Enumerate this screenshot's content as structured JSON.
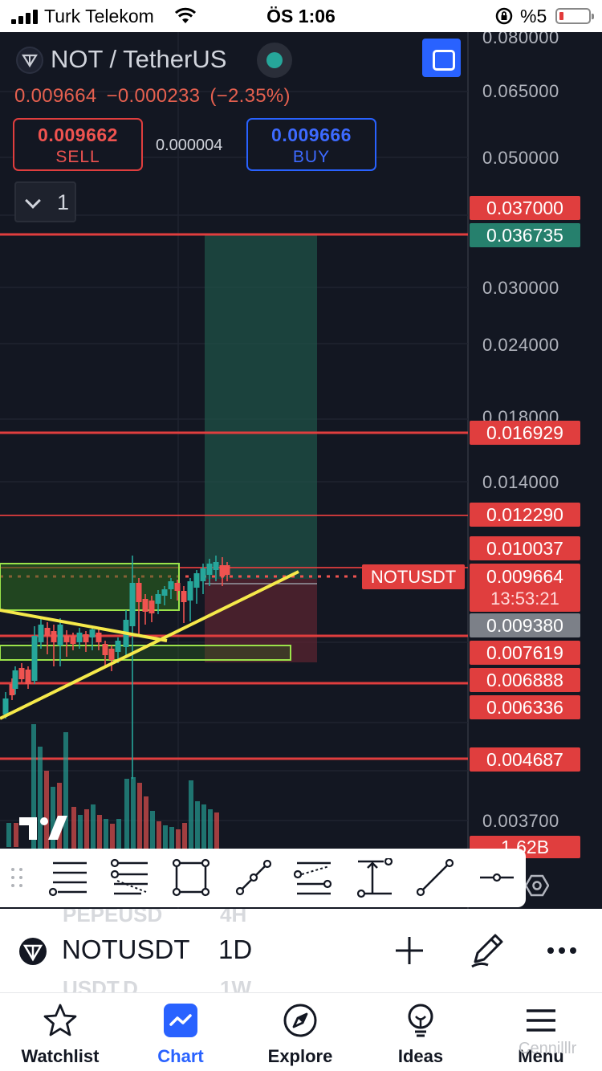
{
  "status_bar": {
    "carrier": "Turk Telekom",
    "time": "ÖS 1:06",
    "battery_percent": "%5"
  },
  "header": {
    "title": "NOT / TetherUS",
    "price": "0.009664",
    "change": "−0.000233",
    "change_pct": "(−2.35%)",
    "sell_price": "0.009662",
    "sell_label": "SELL",
    "spread": "0.000004",
    "buy_price": "0.009666",
    "buy_label": "BUY",
    "interval_count": "1"
  },
  "price_scale": {
    "labels": [
      "0.080000",
      "0.065000",
      "0.050000",
      "0.030000",
      "0.024000",
      "0.018000",
      "0.014000",
      "0.003700"
    ],
    "tags": {
      "level_1": "0.037000",
      "target": "0.036735",
      "level_2": "0.016929",
      "level_3": "0.012290",
      "level_4": "0.010037",
      "current": "0.009664",
      "countdown": "13:53:21",
      "stop": "0.009380",
      "level_5": "0.007619",
      "level_6": "0.006888",
      "level_7": "0.006336",
      "level_8": "0.004687",
      "volume": "1.62B"
    },
    "symbol_label": "NOTUSDT"
  },
  "symbol_bar": {
    "ghost_above_symbol": "PEPEUSD",
    "ghost_above_interval": "4H",
    "symbol": "NOTUSDT",
    "interval": "1D",
    "ghost_below_symbol": "USDT.D",
    "ghost_below_interval": "1W"
  },
  "tabs": [
    {
      "label": "Watchlist",
      "icon": "star-icon"
    },
    {
      "label": "Chart",
      "icon": "chart-icon"
    },
    {
      "label": "Explore",
      "icon": "compass-icon"
    },
    {
      "label": "Ideas",
      "icon": "lightbulb-icon"
    },
    {
      "label": "Menu",
      "icon": "menu-icon"
    }
  ],
  "watermark": "Cennilllr",
  "colors": {
    "background": "#131722",
    "accent": "#2962ff",
    "up": "#26a69a",
    "down": "#ef5350",
    "level_line": "#e03e3e",
    "trendline": "#f5e94a",
    "zone": "#9be34a"
  }
}
